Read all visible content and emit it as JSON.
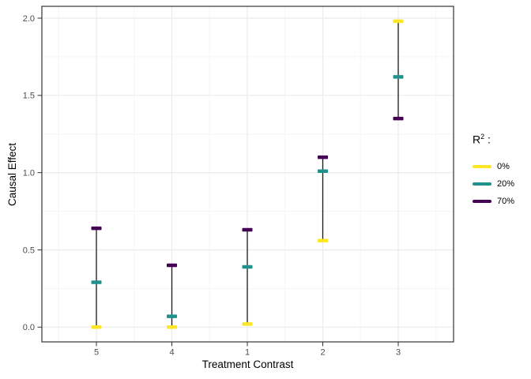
{
  "chart_data": {
    "type": "scatter",
    "subtype": "pointrange-with-crossbar-markers",
    "categories": [
      "5",
      "4",
      "1",
      "2",
      "3"
    ],
    "series": [
      {
        "name": "0%",
        "color": "#FDE725",
        "values": [
          0.0,
          0.0,
          0.02,
          0.56,
          1.98
        ]
      },
      {
        "name": "20%",
        "color": "#21918C",
        "values": [
          0.29,
          0.07,
          0.39,
          1.01,
          1.62
        ]
      },
      {
        "name": "70%",
        "color": "#440154",
        "values": [
          0.64,
          0.4,
          0.63,
          1.1,
          1.35
        ]
      }
    ],
    "title": "",
    "xlabel": "Treatment Contrast",
    "ylabel": "Causal Effect",
    "ylim": [
      -0.1,
      2.08
    ],
    "yticks": [
      0,
      0.5,
      1,
      1.5,
      2
    ],
    "ytick_labels": [
      "0.0",
      "0.5",
      "1.0",
      "1.5",
      "2.0"
    ],
    "grid": "major+minor",
    "legend": {
      "title_base": "R",
      "title_sup": "2",
      "title_suffix": " :",
      "position": "right",
      "items": [
        "0%",
        "20%",
        "70%"
      ]
    }
  },
  "colors": {
    "background": "#FFFFFF",
    "panel_border": "#333333",
    "grid_major": "#EBEBEB",
    "grid_minor": "#F5F5F5",
    "axis_text": "#4D4D4D",
    "axis_title": "#000000",
    "range_line": "#1A1A1A"
  }
}
